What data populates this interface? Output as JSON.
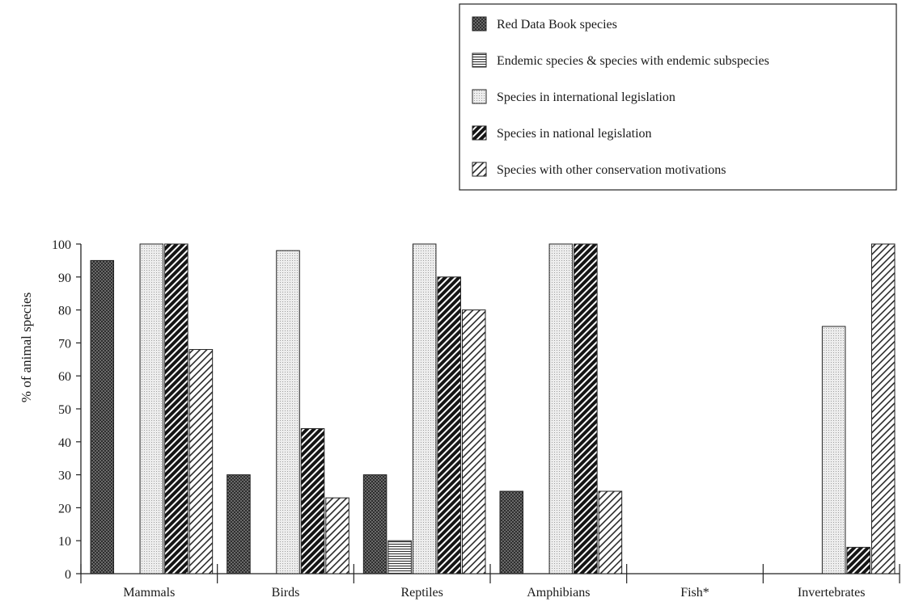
{
  "chart_data": {
    "type": "bar",
    "title": "",
    "xlabel": "",
    "ylabel": "% of animal species",
    "ylim": [
      0,
      100
    ],
    "yticks": [
      0,
      10,
      20,
      30,
      40,
      50,
      60,
      70,
      80,
      90,
      100
    ],
    "grid": false,
    "legend_position": "top-right",
    "categories": [
      "Mammals",
      "Birds",
      "Reptiles",
      "Amphibians",
      "Fish*",
      "Invertebrates"
    ],
    "series": [
      {
        "name": "Red Data Book species",
        "pattern": "crosshatch",
        "values": [
          95,
          30,
          30,
          25,
          0,
          0
        ]
      },
      {
        "name": "Endemic species & species with endemic subspecies",
        "pattern": "horizontal-lines",
        "values": [
          0,
          0,
          10,
          0,
          0,
          0
        ]
      },
      {
        "name": "Species in international legislation",
        "pattern": "dotted",
        "values": [
          100,
          98,
          100,
          100,
          0,
          75
        ]
      },
      {
        "name": "Species in national legislation",
        "pattern": "dark-diagonal",
        "values": [
          100,
          44,
          90,
          100,
          0,
          8
        ]
      },
      {
        "name": "Species with other conservation motivations",
        "pattern": "light-diagonal",
        "values": [
          68,
          23,
          80,
          25,
          0,
          100
        ]
      }
    ]
  }
}
